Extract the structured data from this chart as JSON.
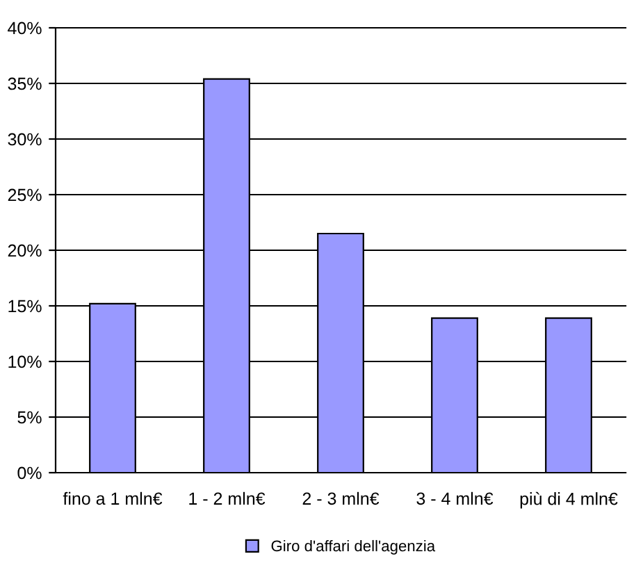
{
  "chart_data": {
    "type": "bar",
    "categories": [
      "fino a 1 mln€",
      "1 - 2 mln€",
      "2 - 3 mln€",
      "3 - 4 mln€",
      "più di 4 mln€"
    ],
    "series": [
      {
        "name": "Giro d'affari dell'agenzia",
        "color": "#9999ff",
        "values": [
          15.2,
          35.4,
          21.5,
          13.9,
          13.9
        ]
      }
    ],
    "ylim": [
      0,
      40
    ],
    "yticks": [
      {
        "value": 0,
        "label": "0%"
      },
      {
        "value": 5,
        "label": "5%"
      },
      {
        "value": 10,
        "label": "10%"
      },
      {
        "value": 15,
        "label": "15%"
      },
      {
        "value": 20,
        "label": "20%"
      },
      {
        "value": 25,
        "label": "25%"
      },
      {
        "value": 30,
        "label": "30%"
      },
      {
        "value": 35,
        "label": "35%"
      },
      {
        "value": 40,
        "label": "40%"
      }
    ],
    "grid": "y",
    "legend": "bottom"
  }
}
